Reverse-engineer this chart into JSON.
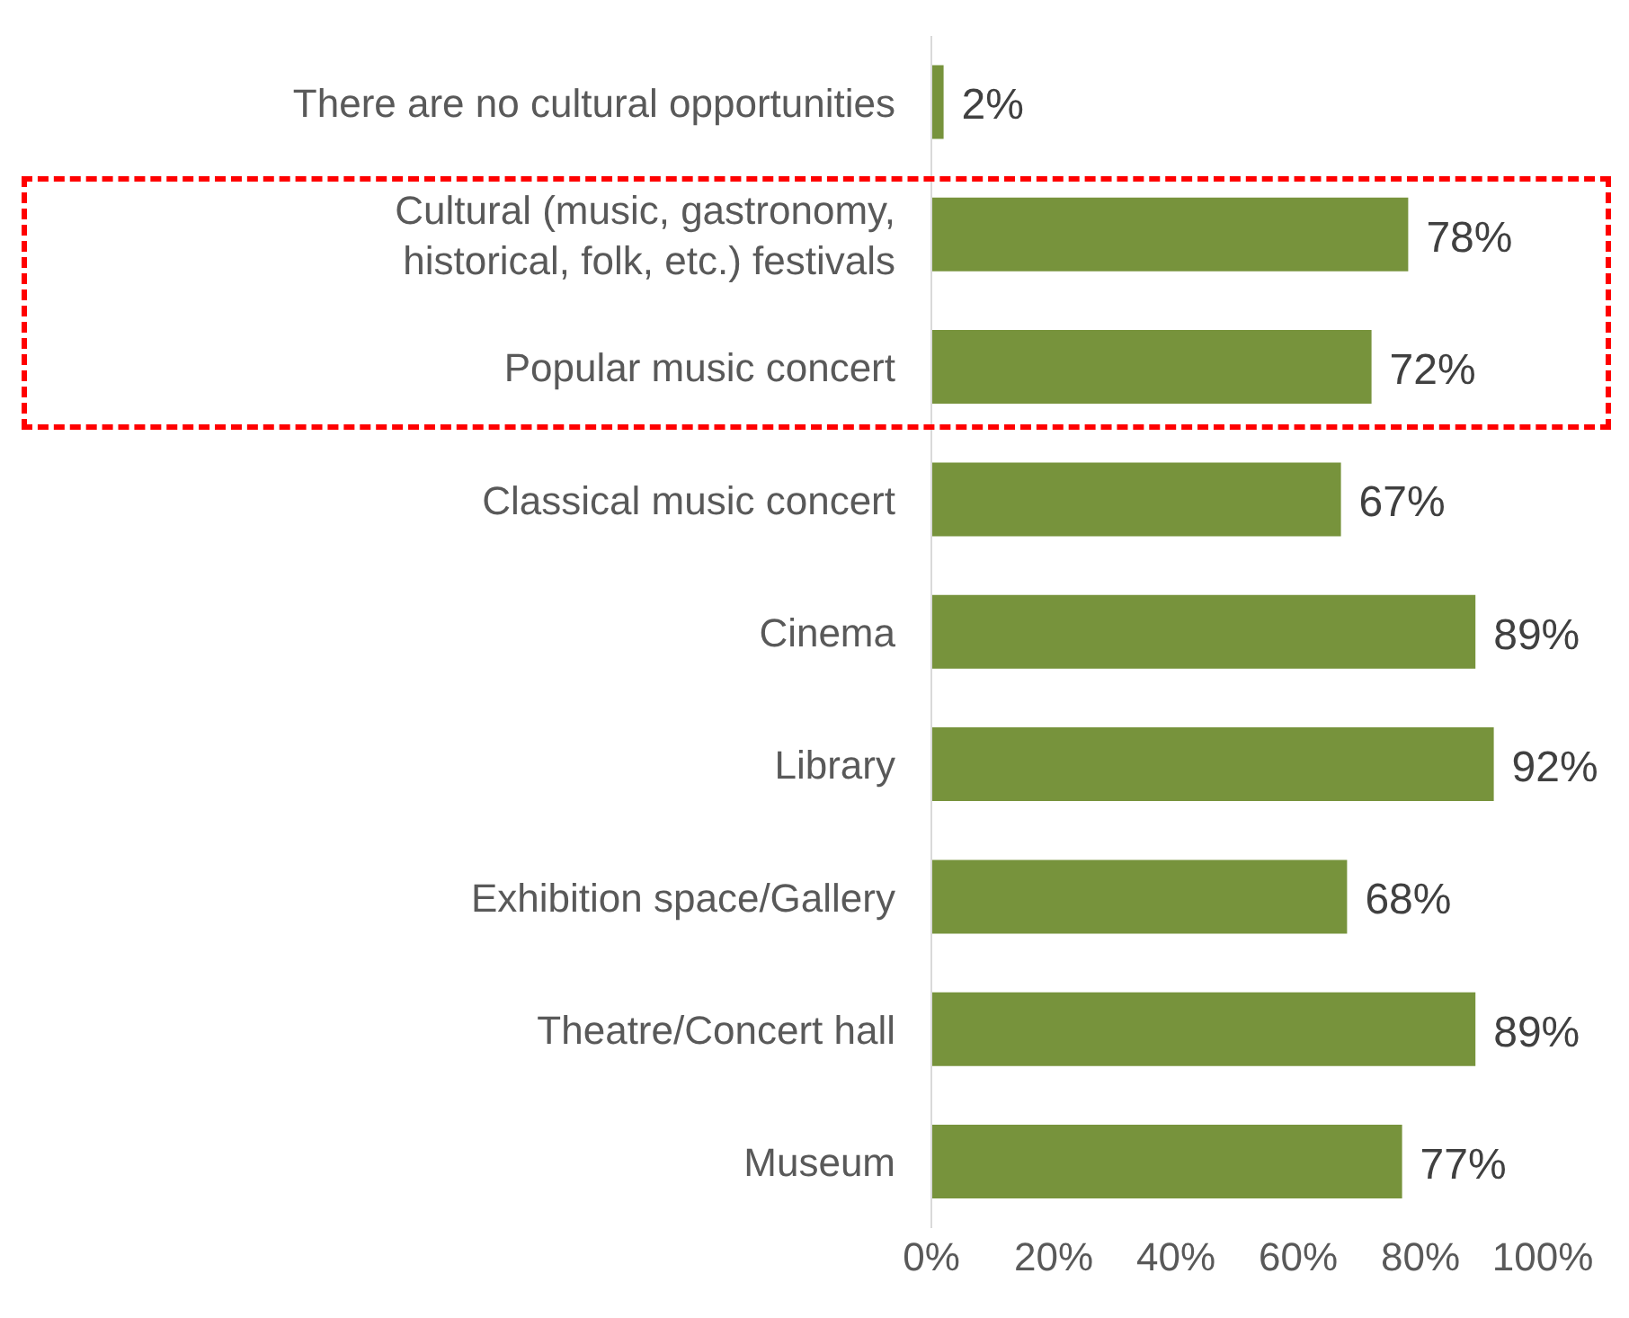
{
  "chart_data": {
    "type": "bar",
    "orientation": "horizontal",
    "categories": [
      "There are no cultural opportunities",
      "Cultural (music, gastronomy, historical, folk, etc.) festivals",
      "Popular music concert",
      "Classical music concert",
      "Cinema",
      "Library",
      "Exhibition space/Gallery",
      "Theatre/Concert hall",
      "Museum"
    ],
    "values": [
      2,
      78,
      72,
      67,
      89,
      92,
      68,
      89,
      77
    ],
    "value_labels": [
      "2%",
      "78%",
      "72%",
      "67%",
      "89%",
      "92%",
      "68%",
      "89%",
      "77%"
    ],
    "color": "#77933c",
    "xlim": [
      0,
      100
    ],
    "xticks": [
      {
        "value": 0,
        "label": "0%"
      },
      {
        "value": 20,
        "label": "20%"
      },
      {
        "value": 40,
        "label": "40%"
      },
      {
        "value": 60,
        "label": "60%"
      },
      {
        "value": 80,
        "label": "80%"
      },
      {
        "value": 100,
        "label": "100%"
      }
    ],
    "grid": false,
    "legend": false
  }
}
